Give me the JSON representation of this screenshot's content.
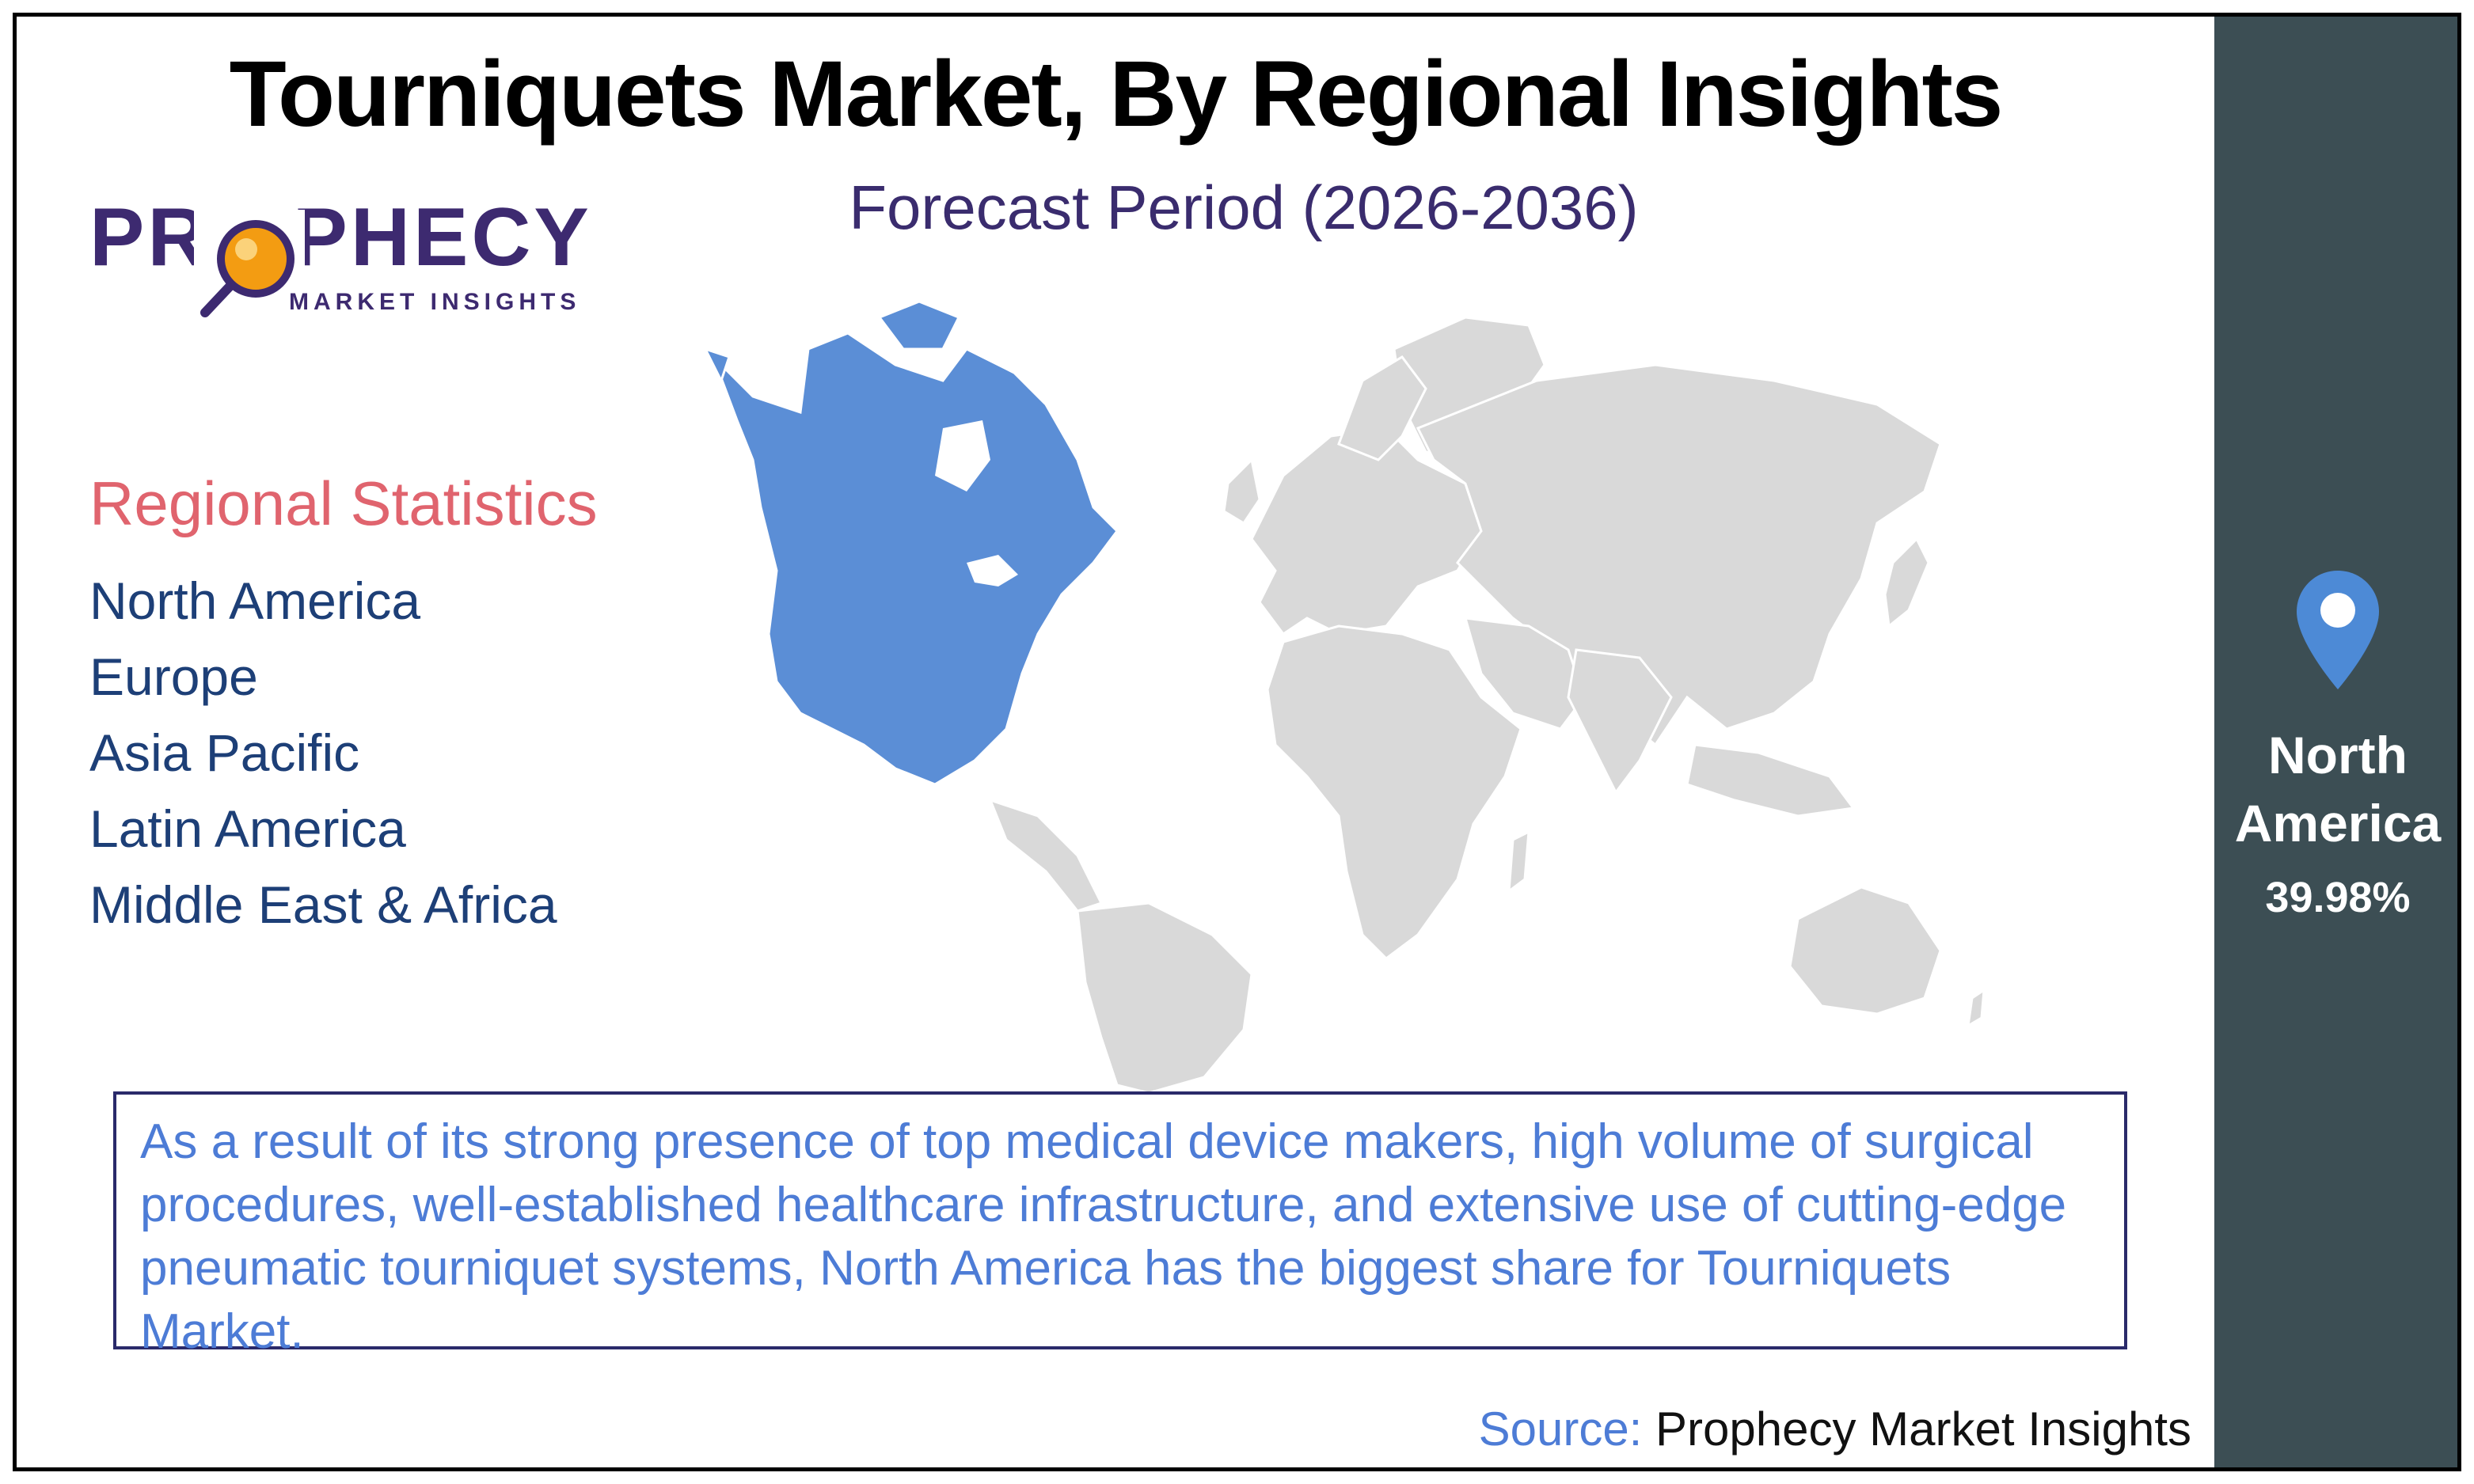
{
  "title": "Tourniquets Market, By Regional Insights",
  "subtitle": "Forecast Period (2026-2036)",
  "logo": {
    "name": "PROPHECY",
    "tagline": "MARKET INSIGHTS"
  },
  "regional_statistics": {
    "heading": "Regional Statistics",
    "regions": [
      "North America",
      "Europe",
      "Asia Pacific",
      "Latin America",
      "Middle East & Africa"
    ]
  },
  "highlight": {
    "region": "North America",
    "share": "39.98%",
    "icon": "location-pin-icon"
  },
  "map": {
    "highlighted_region": "North America"
  },
  "description": "As a result of its strong presence of top medical device makers, high volume of surgical procedures, well-established healthcare infrastructure, and extensive use of cutting-edge pneumatic tourniquet systems, North America has the biggest share for Tourniquets Market.",
  "source": {
    "label": "Source:",
    "value": "Prophecy Market Insights"
  },
  "colors": {
    "highlight": "#5b8ed6",
    "land": "#d9d9d9",
    "sidebar": "#3c4e54",
    "pin": "#4d8ad6",
    "heading_accent": "#e0646e",
    "region_text": "#1d3f77",
    "description_text": "#4d7cd6"
  }
}
